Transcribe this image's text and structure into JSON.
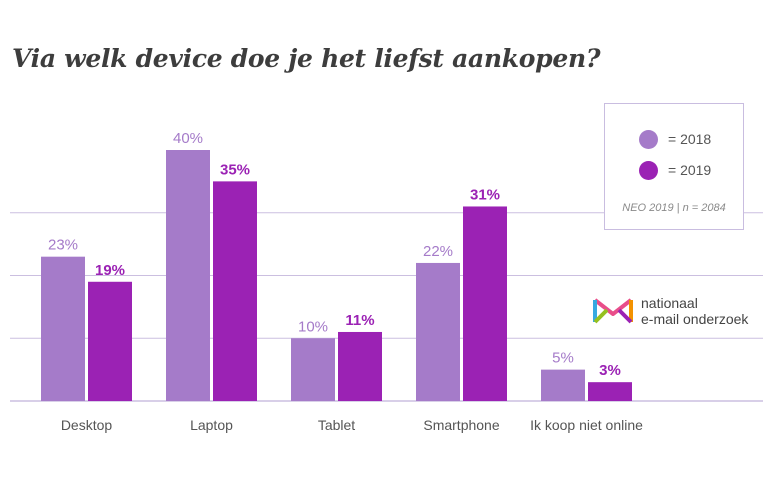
{
  "chart_data": {
    "type": "bar",
    "title": "Via welk device doe je het liefst aankopen?",
    "categories": [
      "Desktop",
      "Laptop",
      "Tablet",
      "Smartphone",
      "Ik koop niet online"
    ],
    "series": [
      {
        "name": "= 2018",
        "values": [
          23,
          40,
          10,
          22,
          5
        ],
        "labels": [
          "23%",
          "40%",
          "10%",
          "22%",
          "5%"
        ],
        "color": "#a57bc9"
      },
      {
        "name": "= 2019",
        "values": [
          19,
          35,
          11,
          31,
          3
        ],
        "labels": [
          "19%",
          "35%",
          "11%",
          "31%",
          "3%"
        ],
        "color": "#9b22b4"
      }
    ],
    "ylim": [
      0,
      40
    ],
    "grid": true,
    "legend_position": "top-right"
  },
  "legend": {
    "source": "NEO 2019 | n = 2084"
  },
  "logo": {
    "line1": "nationaal",
    "line2": "e-mail onderzoek"
  },
  "colors": {
    "grid": "#cbbfe0",
    "axis_text": "#555555",
    "title": "#3d3d3d"
  }
}
